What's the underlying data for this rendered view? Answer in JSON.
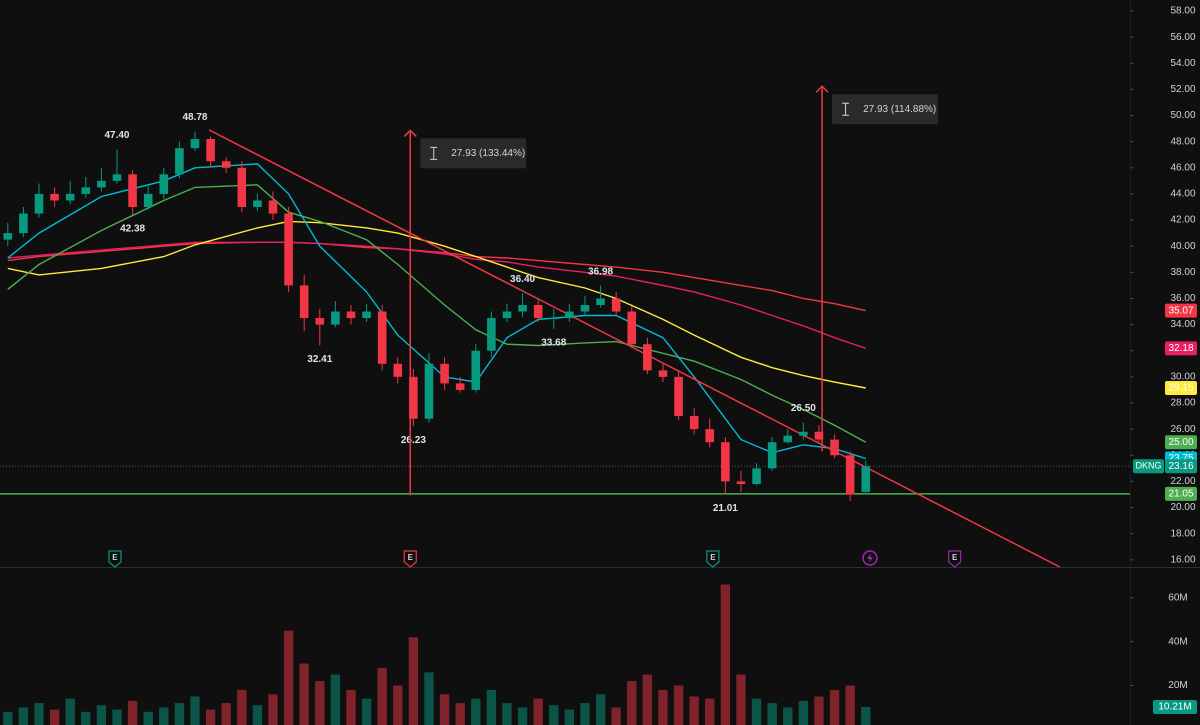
{
  "chart_data": {
    "type": "candlestick",
    "name": "DKNG",
    "xlim": [
      -0.5,
      71.94
    ],
    "ylim": [
      15.45,
      58.84
    ],
    "yticks": [
      {
        "value": 16,
        "label": "16.00"
      },
      {
        "value": 18,
        "label": "18.00"
      },
      {
        "value": 20,
        "label": "20.00"
      },
      {
        "value": 22,
        "label": "22.00"
      },
      {
        "value": 24,
        "label": "24.00"
      },
      {
        "value": 26,
        "label": "26.00"
      },
      {
        "value": 28,
        "label": "28.00"
      },
      {
        "value": 30,
        "label": "30.00"
      },
      {
        "value": 32,
        "label": "32.00"
      },
      {
        "value": 34,
        "label": "34.00"
      },
      {
        "value": 36,
        "label": "36.00"
      },
      {
        "value": 38,
        "label": "38.00"
      },
      {
        "value": 40,
        "label": "40.00"
      },
      {
        "value": 42,
        "label": "42.00"
      },
      {
        "value": 44,
        "label": "44.00"
      },
      {
        "value": 46,
        "label": "46.00"
      },
      {
        "value": 48,
        "label": "48.00"
      },
      {
        "value": 50,
        "label": "50.00"
      },
      {
        "value": 52,
        "label": "52.00"
      },
      {
        "value": 54,
        "label": "54.00"
      },
      {
        "value": 56,
        "label": "56.00"
      },
      {
        "value": 58,
        "label": "58.00"
      }
    ],
    "up_color": "#089981",
    "down_color": "#f23645",
    "open": [
      40.5,
      41,
      42.5,
      44,
      43.5,
      44,
      44.5,
      45,
      45.5,
      43,
      44,
      45.5,
      47.5,
      48.2,
      46.5,
      46,
      43,
      43.5,
      42.5,
      37,
      34.5,
      34,
      35,
      34.5,
      35,
      31,
      30,
      26.8,
      31,
      29.5,
      29,
      32,
      34.5,
      35,
      35.5,
      34.5,
      34.5,
      35,
      35.5,
      36,
      35,
      32.5,
      30.5,
      30,
      27,
      26,
      25,
      22,
      21.8,
      23,
      25,
      25.5,
      25.8,
      25.2,
      24,
      21.2
    ],
    "high": [
      41.8,
      43,
      44.8,
      44.5,
      45,
      45.3,
      46,
      47.4,
      45.8,
      44.6,
      46,
      48,
      48.78,
      48.4,
      46.8,
      46.5,
      44,
      44.2,
      43,
      37.8,
      35.2,
      35.8,
      35.5,
      35.6,
      35.5,
      31.5,
      30.6,
      31.8,
      31.5,
      30,
      32.5,
      35,
      35.6,
      36.4,
      36,
      35.2,
      35.6,
      36.2,
      36.98,
      36.5,
      35.4,
      33,
      31,
      30.5,
      27.6,
      26.8,
      25.4,
      22.8,
      23.4,
      25.4,
      26,
      26.5,
      26.3,
      25.6,
      24.3,
      23.6
    ],
    "low": [
      40,
      40.7,
      42.2,
      43,
      43.2,
      43.7,
      44.2,
      44.8,
      42.38,
      42.8,
      43.6,
      45.2,
      47.3,
      46,
      45.6,
      42.6,
      42.7,
      42,
      36.5,
      33.5,
      32.41,
      33.8,
      34,
      34.2,
      30.5,
      29.5,
      26.23,
      26.5,
      29,
      28.8,
      28.8,
      31.5,
      34.2,
      34.6,
      34.2,
      33.68,
      34.2,
      34.7,
      35.3,
      34.7,
      32.2,
      30.2,
      29.6,
      26.7,
      25.6,
      24.6,
      21.01,
      21.2,
      21.7,
      22.8,
      24.9,
      25.2,
      25,
      23.8,
      20.5,
      21
    ],
    "close": [
      41,
      42.5,
      44,
      43.5,
      44,
      44.5,
      45,
      45.5,
      43,
      44,
      45.5,
      47.5,
      48.2,
      46.5,
      46,
      43,
      43.5,
      42.5,
      37,
      34.5,
      34,
      35,
      34.5,
      35,
      31,
      30,
      26.8,
      31,
      29.5,
      29,
      32,
      34.5,
      35,
      35.5,
      34.5,
      34.5,
      35,
      35.5,
      36,
      35,
      32.5,
      30.5,
      30,
      27,
      26,
      25,
      22,
      21.8,
      23,
      25,
      25.5,
      25.8,
      25.2,
      24,
      21,
      23.16
    ],
    "close_label": "23.16",
    "moving_averages": [
      {
        "color": "#f23645",
        "last_label": "35.07",
        "x": [
          0,
          2,
          6,
          10,
          12,
          16,
          18,
          20,
          23,
          25,
          28,
          30,
          32,
          34,
          37,
          39,
          42,
          44,
          47,
          49,
          51,
          53,
          55
        ],
        "values": [
          38.9,
          39.2,
          39.6,
          40,
          40.2,
          40.3,
          40.3,
          40.2,
          39.9,
          39.8,
          39.5,
          39.2,
          39.1,
          38.9,
          38.6,
          38.4,
          38,
          37.6,
          37,
          36.6,
          36,
          35.6,
          35.07
        ]
      },
      {
        "color": "#e91e63",
        "last_label": "32.18",
        "x": [
          0,
          2,
          6,
          10,
          12,
          16,
          18,
          20,
          23,
          25,
          28,
          30,
          32,
          34,
          37,
          39,
          42,
          44,
          47,
          49,
          51,
          53,
          55
        ],
        "values": [
          39.1,
          39.3,
          39.7,
          40.1,
          40.3,
          40.3,
          40.3,
          40.2,
          40,
          39.8,
          39.4,
          39,
          38.8,
          38.4,
          38,
          37.7,
          37,
          36.5,
          35.5,
          34.7,
          33.9,
          33,
          32.18
        ]
      },
      {
        "color": "#ffeb3b",
        "last_label": "29.15",
        "x": [
          0,
          2,
          6,
          10,
          12,
          16,
          18,
          20,
          23,
          25,
          28,
          30,
          32,
          34,
          37,
          39,
          42,
          44,
          47,
          49,
          51,
          53,
          55
        ],
        "values": [
          38.3,
          37.8,
          38.3,
          39.2,
          40.1,
          41.4,
          41.9,
          41.8,
          41.4,
          41,
          40,
          39.2,
          38.4,
          37.6,
          36.8,
          36,
          34.4,
          33.2,
          31.5,
          30.7,
          30.1,
          29.6,
          29.15
        ]
      },
      {
        "color": "#4caf50",
        "last_label": "25.00",
        "x": [
          0,
          2,
          6,
          10,
          12,
          16,
          18,
          20,
          23,
          25,
          28,
          30,
          32,
          34,
          37,
          39,
          42,
          44,
          47,
          49,
          51,
          53,
          55
        ],
        "values": [
          36.7,
          38.6,
          41.2,
          43.5,
          44.5,
          44.7,
          42.6,
          41.9,
          40.5,
          38.6,
          35.5,
          33.6,
          32.5,
          32.4,
          32.6,
          32.7,
          31.8,
          31.2,
          29.8,
          28.6,
          27.5,
          26.3,
          25
        ]
      },
      {
        "color": "#00bcd4",
        "last_label": "23.75",
        "x": [
          0,
          2,
          6,
          10,
          12,
          16,
          18,
          20,
          23,
          25,
          28,
          30,
          32,
          34,
          37,
          39,
          42,
          44,
          47,
          49,
          51,
          53,
          55
        ],
        "values": [
          39.1,
          41,
          43.8,
          45,
          46,
          46.3,
          44,
          40,
          36.5,
          33.2,
          30,
          29.6,
          33,
          34.4,
          34.7,
          34.7,
          33,
          30,
          25.2,
          24.2,
          24.8,
          24.5,
          23.75
        ]
      }
    ],
    "trendline": {
      "color": "#f23645",
      "x": [
        12.9,
        67.45
      ],
      "values": [
        48.9,
        15.45
      ]
    },
    "hline": {
      "value": 21.05,
      "label": "21.05",
      "color": "#4caf50"
    },
    "measures": [
      {
        "x": 25.8,
        "from": 20.93,
        "to": 48.86,
        "label": "27.93 (133.44%)",
        "color": "#f23645"
      },
      {
        "x": 52.2,
        "from": 24.31,
        "to": 52.24,
        "label": "27.93 (114.88%)",
        "color": "#f23645"
      }
    ],
    "annotations": [
      {
        "x": 7,
        "value": 47.4,
        "label": "47.40"
      },
      {
        "x": 12,
        "value": 48.78,
        "label": "48.78"
      },
      {
        "x": 8,
        "value": 42.38,
        "label": "42.38"
      },
      {
        "x": 20,
        "value": 32.41,
        "label": "32.41"
      },
      {
        "x": 26,
        "value": 26.23,
        "label": "26.23"
      },
      {
        "x": 33,
        "value": 36.4,
        "label": "36.40"
      },
      {
        "x": 38,
        "value": 36.98,
        "label": "36.98"
      },
      {
        "x": 35,
        "value": 33.68,
        "label": "33.68"
      },
      {
        "x": 46,
        "value": 21.01,
        "label": "21.01"
      },
      {
        "x": 51,
        "value": 26.5,
        "label": "26.50"
      }
    ],
    "events": [
      {
        "x": 6.87,
        "label": "E",
        "color": "#089981"
      },
      {
        "x": 25.8,
        "label": "E",
        "color": "#f23645"
      },
      {
        "x": 45.2,
        "label": "E",
        "color": "#089981"
      },
      {
        "x": 60.7,
        "label": "E",
        "color": "#9c27b0"
      }
    ],
    "volume": {
      "ylim": [
        2,
        74
      ],
      "yticks": [
        {
          "value": 20,
          "label": "20M"
        },
        {
          "value": 40,
          "label": "40M"
        },
        {
          "value": 60,
          "label": "60M"
        }
      ],
      "values": [
        8,
        10,
        12,
        9,
        14,
        8,
        11,
        9,
        13,
        8,
        10,
        12,
        15,
        9,
        12,
        18,
        11,
        16,
        45,
        30,
        22,
        25,
        18,
        14,
        28,
        20,
        42,
        26,
        16,
        12,
        14,
        18,
        12,
        10,
        14,
        11,
        9,
        12,
        16,
        10,
        22,
        25,
        18,
        20,
        15,
        14,
        66,
        25,
        14,
        12,
        10,
        13,
        15,
        18,
        20,
        10.21
      ],
      "last_label": "10.21M"
    }
  }
}
